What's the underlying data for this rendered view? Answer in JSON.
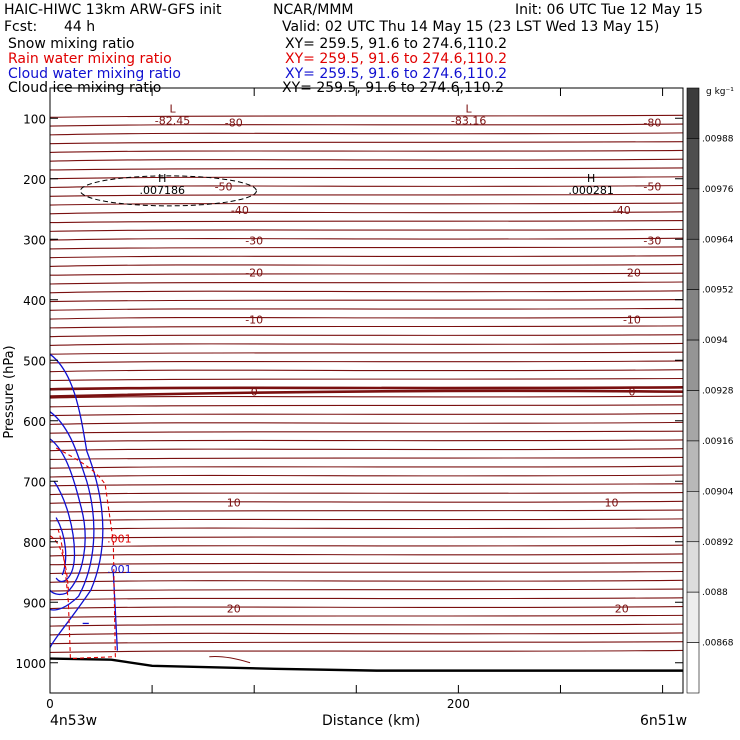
{
  "header": {
    "model_line": "HAIC-HIWC 13km ARW-GFS init",
    "org": "NCAR/MMM",
    "init": "Init: 06 UTC Tue 12 May 15",
    "fcst_label": "Fcst:",
    "fcst_value": "44 h",
    "valid": "Valid: 02 UTC Thu 14 May 15 (23 LST Wed 13 May 15)",
    "fields": [
      {
        "name": "Snow mixing ratio",
        "xy": "XY= 259.5, 91.6 to 274.6,110.2",
        "color": "#000000"
      },
      {
        "name": "Rain water mixing ratio",
        "xy": "XY= 259.5, 91.6 to 274.6,110.2",
        "color": "#e00000"
      },
      {
        "name": "Cloud water mixing ratio",
        "xy": "XY= 259.5, 91.6 to 274.6,110.2",
        "color": "#1010d0"
      },
      {
        "name": "Cloud ice mixing ratio",
        "xy": "XY= 259.5, 91.6 to 274.6,110.2",
        "color": "#000000"
      }
    ]
  },
  "chart_data": {
    "type": "contour",
    "xlabel": "Distance (km)",
    "ylabel": "Pressure (hPa)",
    "xlim": [
      0,
      310
    ],
    "ylim": [
      1050,
      50
    ],
    "x_ticks": [
      0,
      200
    ],
    "y_ticks": [
      100,
      200,
      300,
      400,
      500,
      600,
      700,
      800,
      900,
      1000
    ],
    "x_endpoints": {
      "left": "4n53w",
      "right": "6n51w"
    },
    "temperature_contour_color": "#7a1010",
    "temperature_labels": [
      {
        "text": "-80",
        "x": [
          90,
          295
        ],
        "p": 107
      },
      {
        "text": "-50",
        "x": [
          85,
          295
        ],
        "p": 213
      },
      {
        "text": "-40",
        "x": [
          93,
          280
        ],
        "p": 252
      },
      {
        "text": "-30",
        "x": [
          100,
          295
        ],
        "p": 302
      },
      {
        "text": "-20",
        "x": [
          100,
          285
        ],
        "p": 355
      },
      {
        "text": "-10",
        "x": [
          100,
          285
        ],
        "p": 433
      },
      {
        "text": "0",
        "x": [
          100,
          285
        ],
        "p": 552
      },
      {
        "text": "10",
        "x": [
          90,
          275
        ],
        "p": 735
      },
      {
        "text": "20",
        "x": [
          90,
          280
        ],
        "p": 910
      }
    ],
    "extrema": [
      {
        "type": "L",
        "value": "-82.45",
        "x": 60,
        "p": 100
      },
      {
        "type": "L",
        "value": "-83.16",
        "x": 205,
        "p": 100
      },
      {
        "type": "H",
        "value": ".007186",
        "x": 55,
        "p": 215
      },
      {
        "type": "H",
        "value": ".000281",
        "x": 265,
        "p": 215
      }
    ],
    "contour_labels": [
      {
        "text": ".001",
        "field": "Rain water mixing ratio",
        "x": 28,
        "p": 795
      },
      {
        "text": ".001",
        "field": "Cloud water mixing ratio",
        "x": 28,
        "p": 845
      }
    ],
    "colorbar": {
      "unit": "g kg⁻¹",
      "ticks": [
        ".00988",
        ".00976",
        ".00964",
        ".00952",
        ".0094",
        ".00928",
        ".00916",
        ".00904",
        ".00892",
        ".0088",
        ".00868"
      ]
    }
  }
}
